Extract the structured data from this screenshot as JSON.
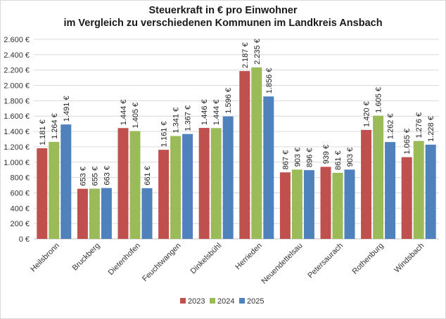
{
  "chart_data": {
    "type": "bar",
    "title": "Steuerkraft in € pro Einwohner",
    "subtitle": "im Vergleich zu verschiedenen Kommunen im Landkreis Ansbach",
    "xlabel": "",
    "ylabel": "",
    "ylim": [
      0,
      2600
    ],
    "y_ticks": [
      0,
      200,
      400,
      600,
      800,
      1000,
      1200,
      1400,
      1600,
      1800,
      2000,
      2200,
      2400,
      2600
    ],
    "y_tick_labels": [
      "0 €",
      "200 €",
      "400 €",
      "600 €",
      "800 €",
      "1.000 €",
      "1.200 €",
      "1.400 €",
      "1.600 €",
      "1.800 €",
      "2.000 €",
      "2.200 €",
      "2.400 €",
      "2.600 €"
    ],
    "grid": true,
    "legend_position": "bottom",
    "categories": [
      "Heilsbronn",
      "Bruckberg",
      "Dietenhofen",
      "Feuchtwangen",
      "Dinkelsbühl",
      "Herrieden",
      "Neuendettelsau",
      "Petersaurach",
      "Rothenburg",
      "Windsbach"
    ],
    "series": [
      {
        "name": "2023",
        "color": "#c0504d",
        "values": [
          1181,
          653,
          1444,
          1161,
          1446,
          2187,
          867,
          939,
          1420,
          1065
        ],
        "labels": [
          "1.181 €",
          "653 €",
          "1.444 €",
          "1.161 €",
          "1.446 €",
          "2.187 €",
          "867 €",
          "939 €",
          "1.420 €",
          "1.065 €"
        ]
      },
      {
        "name": "2024",
        "color": "#9bbb59",
        "values": [
          1264,
          655,
          1405,
          1341,
          1444,
          2235,
          903,
          861,
          1605,
          1276
        ],
        "labels": [
          "1.264 €",
          "655 €",
          "1.405 €",
          "1.341 €",
          "1.444 €",
          "2.235 €",
          "903 €",
          "861 €",
          "1.605 €",
          "1.276 €"
        ]
      },
      {
        "name": "2025",
        "color": "#4f81bd",
        "values": [
          1491,
          663,
          661,
          1367,
          1596,
          1856,
          896,
          903,
          1262,
          1228
        ],
        "labels": [
          "1.491 €",
          "663 €",
          "661 €",
          "1.367 €",
          "1.596 €",
          "1.856 €",
          "896 €",
          "903 €",
          "1.262 €",
          "1.228 €"
        ]
      }
    ]
  }
}
